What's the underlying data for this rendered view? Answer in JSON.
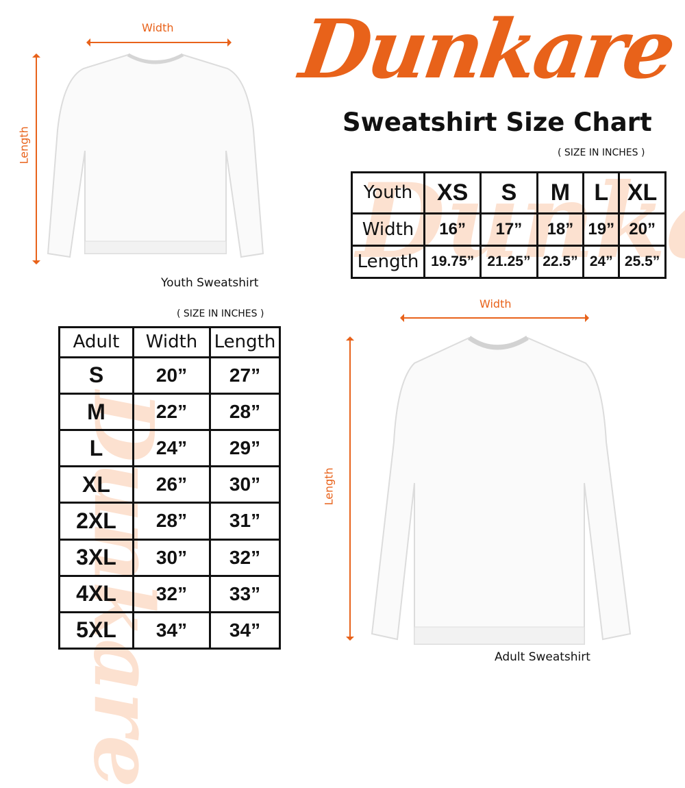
{
  "brand": {
    "logo_text": "Dunkare",
    "color": "#e8621a"
  },
  "title": "Sweatshirt Size Chart",
  "youth": {
    "width_label": "Width",
    "length_label": "Length",
    "caption": "Youth Sweatshirt",
    "unit_note": "( SIZE IN INCHES )",
    "table": {
      "header": [
        "Youth",
        "XS",
        "S",
        "M",
        "L",
        "XL"
      ],
      "rows": [
        [
          "Width",
          "16”",
          "17”",
          "18”",
          "19”",
          "20”"
        ],
        [
          "Length",
          "19.75”",
          "21.25”",
          "22.5”",
          "24”",
          "25.5”"
        ]
      ]
    }
  },
  "adult": {
    "width_label": "Width",
    "length_label": "Length",
    "caption": "Adult Sweatshirt",
    "unit_note": "( SIZE IN INCHES )",
    "table": {
      "header": [
        "Adult",
        "Width",
        "Length"
      ],
      "rows": [
        [
          "S",
          "20”",
          "27”"
        ],
        [
          "M",
          "22”",
          "28”"
        ],
        [
          "L",
          "24”",
          "29”"
        ],
        [
          "XL",
          "26”",
          "30”"
        ],
        [
          "2XL",
          "28”",
          "31”"
        ],
        [
          "3XL",
          "30”",
          "32”"
        ],
        [
          "4XL",
          "32”",
          "33”"
        ],
        [
          "5XL",
          "34”",
          "34”"
        ]
      ]
    }
  }
}
